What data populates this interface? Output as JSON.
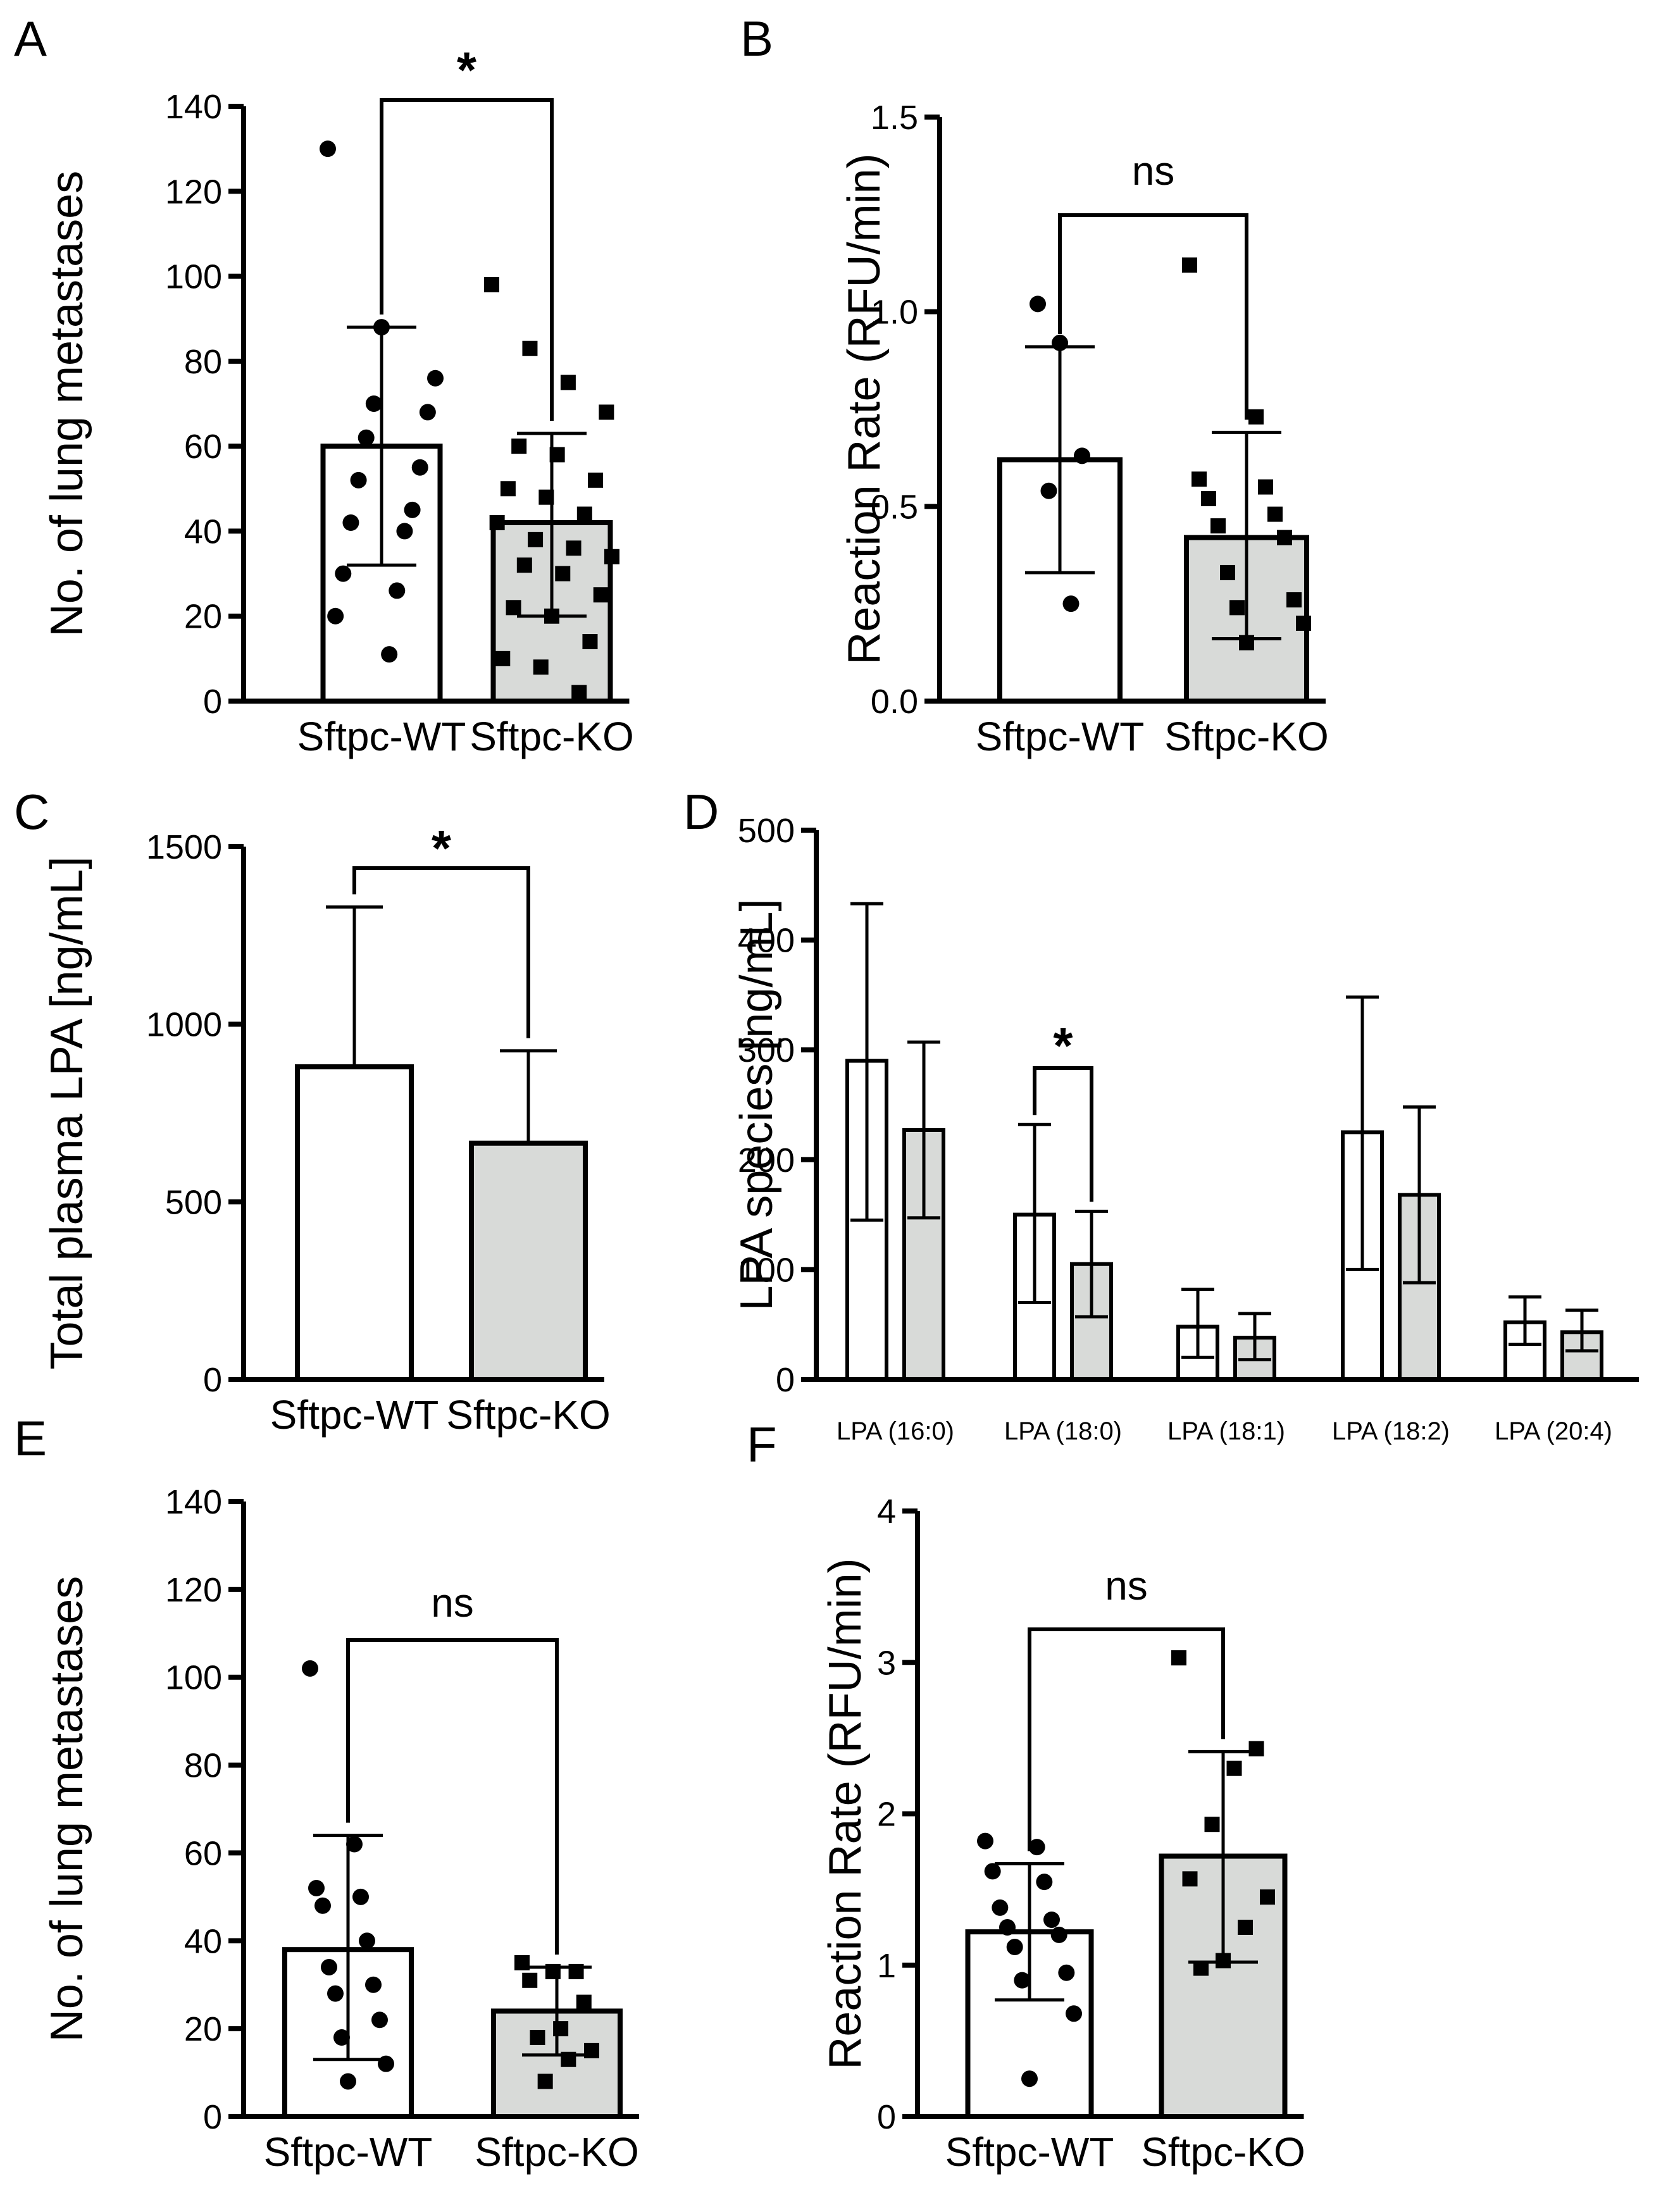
{
  "chart_data": [
    {
      "type": "bar",
      "panel": "A",
      "ylabel": "No. of lung metastases",
      "ylim": [
        0,
        140
      ],
      "yticks": [
        0,
        20,
        40,
        60,
        80,
        100,
        120,
        140
      ],
      "categories": [
        "Sftpc-WT",
        "Sftpc-KO"
      ],
      "series": [
        {
          "values": [
            60,
            42
          ]
        }
      ],
      "error": [
        {
          "low": 32,
          "high": 88
        },
        {
          "low": 20,
          "high": 63
        }
      ],
      "fills": [
        "#ffffff",
        "#d8dad8"
      ],
      "points": [
        {
          "marker": "circle",
          "values": [
            130,
            88,
            76,
            70,
            68,
            62,
            55,
            52,
            45,
            42,
            40,
            30,
            26,
            20,
            11
          ]
        },
        {
          "marker": "square",
          "values": [
            98,
            83,
            75,
            68,
            60,
            58,
            52,
            50,
            48,
            44,
            42,
            38,
            36,
            34,
            32,
            30,
            25,
            22,
            20,
            14,
            10,
            8,
            2
          ]
        }
      ],
      "significance": "*"
    },
    {
      "type": "bar",
      "panel": "B",
      "ylabel": "Reaction Rate (RFU/min)",
      "ylim": [
        0,
        1.5
      ],
      "yticks": [
        "0.0",
        "0.5",
        "1.0",
        "1.5"
      ],
      "categories": [
        "Sftpc-WT",
        "Sftpc-KO"
      ],
      "series": [
        {
          "values": [
            0.62,
            0.42
          ]
        }
      ],
      "error": [
        {
          "low": 0.33,
          "high": 0.91
        },
        {
          "low": 0.16,
          "high": 0.69
        }
      ],
      "fills": [
        "#ffffff",
        "#d8dad8"
      ],
      "points": [
        {
          "marker": "circle",
          "values": [
            1.02,
            0.92,
            0.63,
            0.54,
            0.25
          ]
        },
        {
          "marker": "square",
          "values": [
            1.12,
            0.73,
            0.57,
            0.55,
            0.52,
            0.48,
            0.45,
            0.42,
            0.33,
            0.26,
            0.24,
            0.2,
            0.15
          ]
        }
      ],
      "significance": "ns"
    },
    {
      "type": "bar",
      "panel": "C",
      "ylabel": "Total plasma LPA [ng/mL]",
      "ylim": [
        0,
        1500
      ],
      "yticks": [
        0,
        500,
        1000,
        1500
      ],
      "categories": [
        "Sftpc-WT",
        "Sftpc-KO"
      ],
      "series": [
        {
          "values": [
            880,
            665
          ]
        }
      ],
      "error": [
        {
          "low": 880,
          "high": 1330
        },
        {
          "low": 665,
          "high": 925
        }
      ],
      "fills": [
        "#ffffff",
        "#d8dad8"
      ],
      "significance": "*"
    },
    {
      "type": "bar",
      "panel": "D",
      "ylabel": "LPA species [ng/mL]",
      "ylim": [
        0,
        500
      ],
      "yticks": [
        0,
        100,
        200,
        300,
        400,
        500
      ],
      "categories": [
        "LPA (16:0)",
        "LPA (18:0)",
        "LPA (18:1)",
        "LPA (18:2)",
        "LPA (20:4)"
      ],
      "series": [
        {
          "values": [
            290,
            150,
            48,
            225,
            52
          ],
          "fill": "#ffffff",
          "err_low": [
            145,
            70,
            20,
            100,
            32
          ],
          "err_high": [
            433,
            232,
            82,
            348,
            75
          ]
        },
        {
          "values": [
            227,
            105,
            38,
            168,
            43
          ],
          "fill": "#d8dad8",
          "err_low": [
            147,
            57,
            18,
            88,
            26
          ],
          "err_high": [
            307,
            153,
            60,
            248,
            63
          ]
        }
      ],
      "significance": "*"
    },
    {
      "type": "bar",
      "panel": "E",
      "ylabel": "No. of lung metastases",
      "ylim": [
        0,
        140
      ],
      "yticks": [
        0,
        20,
        40,
        60,
        80,
        100,
        120,
        140
      ],
      "categories": [
        "Sftpc-WT",
        "Sftpc-KO"
      ],
      "series": [
        {
          "values": [
            38,
            24
          ]
        }
      ],
      "error": [
        {
          "low": 13,
          "high": 64
        },
        {
          "low": 14,
          "high": 34
        }
      ],
      "fills": [
        "#ffffff",
        "#d8dad8"
      ],
      "points": [
        {
          "marker": "circle",
          "values": [
            102,
            62,
            52,
            50,
            48,
            40,
            34,
            30,
            28,
            22,
            18,
            12,
            8
          ]
        },
        {
          "marker": "square",
          "values": [
            35,
            33,
            33,
            31,
            26,
            20,
            18,
            15,
            13,
            8
          ]
        }
      ],
      "significance": "ns"
    },
    {
      "type": "bar",
      "panel": "F",
      "ylabel": "Reaction Rate (RFU/min)",
      "ylim": [
        0,
        4
      ],
      "yticks": [
        0,
        1,
        2,
        3,
        4
      ],
      "categories": [
        "Sftpc-WT",
        "Sftpc-KO"
      ],
      "series": [
        {
          "values": [
            1.22,
            1.72
          ]
        }
      ],
      "error": [
        {
          "low": 0.77,
          "high": 1.67
        },
        {
          "low": 1.02,
          "high": 2.41
        }
      ],
      "fills": [
        "#ffffff",
        "#d8dad8"
      ],
      "points": [
        {
          "marker": "circle",
          "values": [
            1.82,
            1.78,
            1.62,
            1.55,
            1.38,
            1.3,
            1.25,
            1.2,
            1.12,
            0.95,
            0.9,
            0.68,
            0.25
          ]
        },
        {
          "marker": "square",
          "values": [
            3.03,
            2.43,
            2.3,
            1.93,
            1.57,
            1.45,
            1.25,
            1.03,
            0.98
          ]
        }
      ],
      "significance": "ns"
    }
  ]
}
